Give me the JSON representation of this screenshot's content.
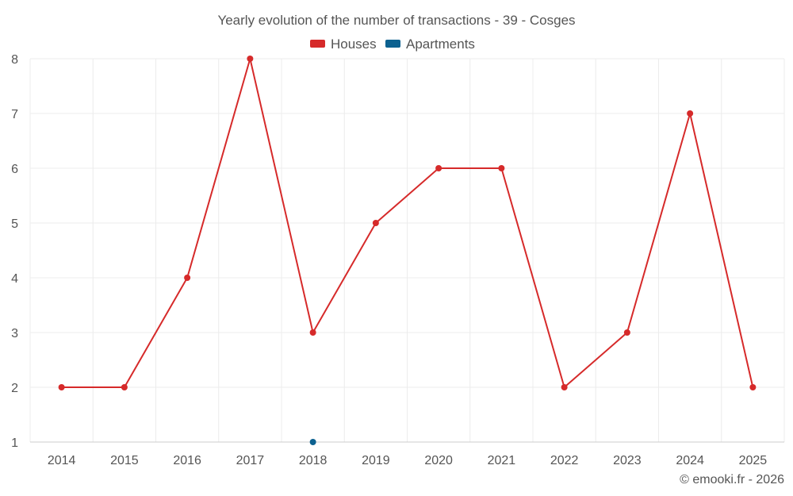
{
  "chart_data": {
    "type": "line",
    "title": "Yearly evolution of the number of transactions - 39 - Cosges",
    "categories": [
      "2014",
      "2015",
      "2016",
      "2017",
      "2018",
      "2019",
      "2020",
      "2021",
      "2022",
      "2023",
      "2024",
      "2025"
    ],
    "series": [
      {
        "name": "Houses",
        "color": "#d62a2a",
        "values": [
          2,
          2,
          4,
          8,
          3,
          5,
          6,
          6,
          2,
          3,
          7,
          2
        ]
      },
      {
        "name": "Apartments",
        "color": "#0c6190",
        "values": [
          null,
          null,
          null,
          null,
          1,
          null,
          null,
          null,
          null,
          null,
          null,
          null
        ]
      }
    ],
    "ylim": [
      1,
      8
    ],
    "yticks": [
      1,
      2,
      3,
      4,
      5,
      6,
      7,
      8
    ],
    "xlabel": "",
    "ylabel": "",
    "grid": true,
    "legend": "top-center"
  },
  "credit": "© emooki.fr - 2026"
}
